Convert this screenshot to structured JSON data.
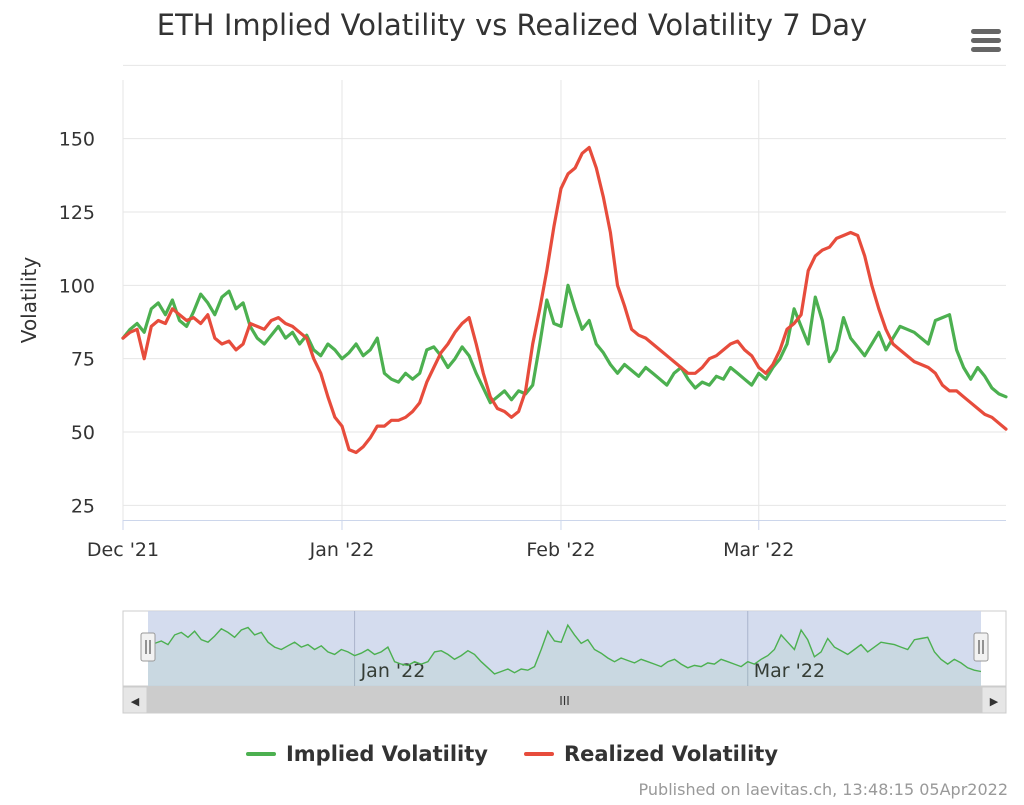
{
  "menu": {
    "icon": "hamburger-menu-icon"
  },
  "credits": "Published on laevitas.ch, 13:48:15 05Apr2022",
  "colors": {
    "implied": "#4CB050",
    "realized": "#E74C3C",
    "grid": "#e6e6e6",
    "navigator_mask": "#ccd6eb"
  },
  "navigator": {
    "x_labels": [
      "Jan '22",
      "Mar '22"
    ],
    "scrollbar_grip": "III",
    "left_arrow": "◀",
    "right_arrow": "▶"
  },
  "chart_data": {
    "type": "line",
    "title": "ETH Implied Volatility vs Realized Volatility 7 Day",
    "xlabel": "",
    "ylabel": "Volatility",
    "ylim": [
      20,
      170
    ],
    "yticks": [
      25,
      50,
      75,
      100,
      125,
      150
    ],
    "xlim": [
      0,
      125
    ],
    "xticks": [
      {
        "x": 0,
        "label": "Dec '21"
      },
      {
        "x": 31,
        "label": "Jan '22"
      },
      {
        "x": 62,
        "label": "Feb '22"
      },
      {
        "x": 90,
        "label": "Mar '22"
      }
    ],
    "legend": [
      "Implied Volatility",
      "Realized Volatility"
    ],
    "series": [
      {
        "name": "Implied Volatility",
        "points": [
          [
            0,
            82
          ],
          [
            1,
            85
          ],
          [
            2,
            87
          ],
          [
            3,
            84
          ],
          [
            4,
            92
          ],
          [
            5,
            94
          ],
          [
            6,
            90
          ],
          [
            7,
            95
          ],
          [
            8,
            88
          ],
          [
            9,
            86
          ],
          [
            10,
            91
          ],
          [
            11,
            97
          ],
          [
            12,
            94
          ],
          [
            13,
            90
          ],
          [
            14,
            96
          ],
          [
            15,
            98
          ],
          [
            16,
            92
          ],
          [
            17,
            94
          ],
          [
            18,
            86
          ],
          [
            19,
            82
          ],
          [
            20,
            80
          ],
          [
            21,
            83
          ],
          [
            22,
            86
          ],
          [
            23,
            82
          ],
          [
            24,
            84
          ],
          [
            25,
            80
          ],
          [
            26,
            83
          ],
          [
            27,
            78
          ],
          [
            28,
            76
          ],
          [
            29,
            80
          ],
          [
            30,
            78
          ],
          [
            31,
            75
          ],
          [
            32,
            77
          ],
          [
            33,
            80
          ],
          [
            34,
            76
          ],
          [
            35,
            78
          ],
          [
            36,
            82
          ],
          [
            37,
            70
          ],
          [
            38,
            68
          ],
          [
            39,
            67
          ],
          [
            40,
            70
          ],
          [
            41,
            68
          ],
          [
            42,
            70
          ],
          [
            43,
            78
          ],
          [
            44,
            79
          ],
          [
            45,
            76
          ],
          [
            46,
            72
          ],
          [
            47,
            75
          ],
          [
            48,
            79
          ],
          [
            49,
            76
          ],
          [
            50,
            70
          ],
          [
            51,
            65
          ],
          [
            52,
            60
          ],
          [
            53,
            62
          ],
          [
            54,
            64
          ],
          [
            55,
            61
          ],
          [
            56,
            64
          ],
          [
            57,
            63
          ],
          [
            58,
            66
          ],
          [
            59,
            80
          ],
          [
            60,
            95
          ],
          [
            61,
            87
          ],
          [
            62,
            86
          ],
          [
            63,
            100
          ],
          [
            64,
            92
          ],
          [
            65,
            85
          ],
          [
            66,
            88
          ],
          [
            67,
            80
          ],
          [
            68,
            77
          ],
          [
            69,
            73
          ],
          [
            70,
            70
          ],
          [
            71,
            73
          ],
          [
            72,
            71
          ],
          [
            73,
            69
          ],
          [
            74,
            72
          ],
          [
            75,
            70
          ],
          [
            76,
            68
          ],
          [
            77,
            66
          ],
          [
            78,
            70
          ],
          [
            79,
            72
          ],
          [
            80,
            68
          ],
          [
            81,
            65
          ],
          [
            82,
            67
          ],
          [
            83,
            66
          ],
          [
            84,
            69
          ],
          [
            85,
            68
          ],
          [
            86,
            72
          ],
          [
            87,
            70
          ],
          [
            88,
            68
          ],
          [
            89,
            66
          ],
          [
            90,
            70
          ],
          [
            91,
            68
          ],
          [
            92,
            72
          ],
          [
            93,
            75
          ],
          [
            94,
            80
          ],
          [
            95,
            92
          ],
          [
            96,
            86
          ],
          [
            97,
            80
          ],
          [
            98,
            96
          ],
          [
            99,
            88
          ],
          [
            100,
            74
          ],
          [
            101,
            78
          ],
          [
            102,
            89
          ],
          [
            103,
            82
          ],
          [
            104,
            79
          ],
          [
            105,
            76
          ],
          [
            106,
            80
          ],
          [
            107,
            84
          ],
          [
            108,
            78
          ],
          [
            109,
            82
          ],
          [
            110,
            86
          ],
          [
            111,
            85
          ],
          [
            112,
            84
          ],
          [
            113,
            82
          ],
          [
            114,
            80
          ],
          [
            115,
            88
          ],
          [
            116,
            89
          ],
          [
            117,
            90
          ],
          [
            118,
            78
          ],
          [
            119,
            72
          ],
          [
            120,
            68
          ],
          [
            121,
            72
          ],
          [
            122,
            69
          ],
          [
            123,
            65
          ],
          [
            124,
            63
          ],
          [
            125,
            62
          ]
        ]
      },
      {
        "name": "Realized Volatility",
        "points": [
          [
            0,
            82
          ],
          [
            1,
            84
          ],
          [
            2,
            85
          ],
          [
            3,
            75
          ],
          [
            4,
            86
          ],
          [
            5,
            88
          ],
          [
            6,
            87
          ],
          [
            7,
            92
          ],
          [
            8,
            90
          ],
          [
            9,
            88
          ],
          [
            10,
            89
          ],
          [
            11,
            87
          ],
          [
            12,
            90
          ],
          [
            13,
            82
          ],
          [
            14,
            80
          ],
          [
            15,
            81
          ],
          [
            16,
            78
          ],
          [
            17,
            80
          ],
          [
            18,
            87
          ],
          [
            19,
            86
          ],
          [
            20,
            85
          ],
          [
            21,
            88
          ],
          [
            22,
            89
          ],
          [
            23,
            87
          ],
          [
            24,
            86
          ],
          [
            25,
            84
          ],
          [
            26,
            82
          ],
          [
            27,
            75
          ],
          [
            28,
            70
          ],
          [
            29,
            62
          ],
          [
            30,
            55
          ],
          [
            31,
            52
          ],
          [
            32,
            44
          ],
          [
            33,
            43
          ],
          [
            34,
            45
          ],
          [
            35,
            48
          ],
          [
            36,
            52
          ],
          [
            37,
            52
          ],
          [
            38,
            54
          ],
          [
            39,
            54
          ],
          [
            40,
            55
          ],
          [
            41,
            57
          ],
          [
            42,
            60
          ],
          [
            43,
            67
          ],
          [
            44,
            72
          ],
          [
            45,
            77
          ],
          [
            46,
            80
          ],
          [
            47,
            84
          ],
          [
            48,
            87
          ],
          [
            49,
            89
          ],
          [
            50,
            80
          ],
          [
            51,
            70
          ],
          [
            52,
            62
          ],
          [
            53,
            58
          ],
          [
            54,
            57
          ],
          [
            55,
            55
          ],
          [
            56,
            57
          ],
          [
            57,
            64
          ],
          [
            58,
            80
          ],
          [
            59,
            92
          ],
          [
            60,
            105
          ],
          [
            61,
            120
          ],
          [
            62,
            133
          ],
          [
            63,
            138
          ],
          [
            64,
            140
          ],
          [
            65,
            145
          ],
          [
            66,
            147
          ],
          [
            67,
            140
          ],
          [
            68,
            130
          ],
          [
            69,
            118
          ],
          [
            70,
            100
          ],
          [
            71,
            93
          ],
          [
            72,
            85
          ],
          [
            73,
            83
          ],
          [
            74,
            82
          ],
          [
            75,
            80
          ],
          [
            76,
            78
          ],
          [
            77,
            76
          ],
          [
            78,
            74
          ],
          [
            79,
            72
          ],
          [
            80,
            70
          ],
          [
            81,
            70
          ],
          [
            82,
            72
          ],
          [
            83,
            75
          ],
          [
            84,
            76
          ],
          [
            85,
            78
          ],
          [
            86,
            80
          ],
          [
            87,
            81
          ],
          [
            88,
            78
          ],
          [
            89,
            76
          ],
          [
            90,
            72
          ],
          [
            91,
            70
          ],
          [
            92,
            73
          ],
          [
            93,
            78
          ],
          [
            94,
            85
          ],
          [
            95,
            87
          ],
          [
            96,
            90
          ],
          [
            97,
            105
          ],
          [
            98,
            110
          ],
          [
            99,
            112
          ],
          [
            100,
            113
          ],
          [
            101,
            116
          ],
          [
            102,
            117
          ],
          [
            103,
            118
          ],
          [
            104,
            117
          ],
          [
            105,
            110
          ],
          [
            106,
            100
          ],
          [
            107,
            92
          ],
          [
            108,
            85
          ],
          [
            109,
            80
          ],
          [
            110,
            78
          ],
          [
            111,
            76
          ],
          [
            112,
            74
          ],
          [
            113,
            73
          ],
          [
            114,
            72
          ],
          [
            115,
            70
          ],
          [
            116,
            66
          ],
          [
            117,
            64
          ],
          [
            118,
            64
          ],
          [
            119,
            62
          ],
          [
            120,
            60
          ],
          [
            121,
            58
          ],
          [
            122,
            56
          ],
          [
            123,
            55
          ],
          [
            124,
            53
          ],
          [
            125,
            51
          ]
        ]
      }
    ]
  }
}
